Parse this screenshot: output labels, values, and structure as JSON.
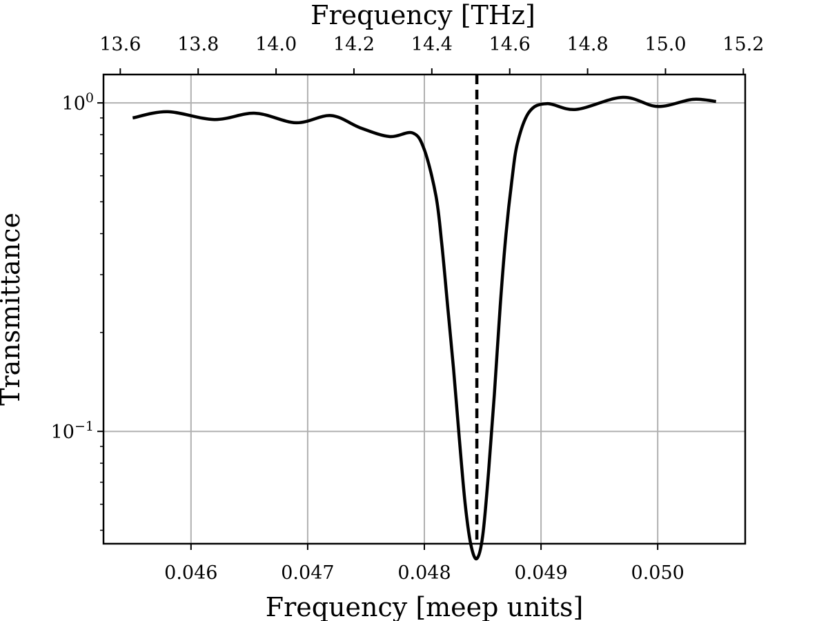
{
  "chart_data": {
    "type": "line",
    "title": "",
    "xlabel": "Frequency [meep units]",
    "x2label": "Frequency [THz]",
    "ylabel": "Transmittance",
    "xlim": [
      0.04525,
      0.05075
    ],
    "ylim": [
      0.0455,
      1.22
    ],
    "yscale": "log",
    "grid": true,
    "x_ticks": [
      {
        "value": 0.046,
        "label": "0.046"
      },
      {
        "value": 0.047,
        "label": "0.047"
      },
      {
        "value": 0.048,
        "label": "0.048"
      },
      {
        "value": 0.049,
        "label": "0.049"
      },
      {
        "value": 0.05,
        "label": "0.050"
      }
    ],
    "x2_ticks": [
      {
        "value": 13.6,
        "label": "13.6"
      },
      {
        "value": 13.8,
        "label": "13.8"
      },
      {
        "value": 14.0,
        "label": "14.0"
      },
      {
        "value": 14.2,
        "label": "14.2"
      },
      {
        "value": 14.4,
        "label": "14.4"
      },
      {
        "value": 14.6,
        "label": "14.6"
      },
      {
        "value": 14.8,
        "label": "14.8"
      },
      {
        "value": 15.0,
        "label": "15.0"
      },
      {
        "value": 15.2,
        "label": "15.2"
      }
    ],
    "x2_per_x": 299.6,
    "y_ticks": [
      {
        "value": 1.0,
        "base": "10",
        "exp": "0"
      },
      {
        "value": 0.1,
        "base": "10",
        "exp": "−1"
      }
    ],
    "reference_line": {
      "x": 0.04845,
      "style": "dashed"
    },
    "series": [
      {
        "x": [
          0.0455,
          0.0458,
          0.0462,
          0.04655,
          0.0469,
          0.0472,
          0.04745,
          0.0477,
          0.0479,
          0.048,
          0.0481,
          0.04815,
          0.0482,
          0.04825,
          0.0483,
          0.04835,
          0.0484,
          0.04845,
          0.0485,
          0.04855,
          0.0486,
          0.04865,
          0.0487,
          0.04875,
          0.0488,
          0.0489,
          0.04905,
          0.0493,
          0.0497,
          0.05,
          0.0503,
          0.0505
        ],
        "y": [
          0.9,
          0.94,
          0.89,
          0.93,
          0.87,
          0.915,
          0.84,
          0.79,
          0.81,
          0.72,
          0.52,
          0.37,
          0.24,
          0.155,
          0.095,
          0.06,
          0.045,
          0.041,
          0.048,
          0.075,
          0.13,
          0.24,
          0.4,
          0.58,
          0.76,
          0.94,
          0.995,
          0.955,
          1.04,
          0.975,
          1.025,
          1.01
        ]
      }
    ]
  }
}
